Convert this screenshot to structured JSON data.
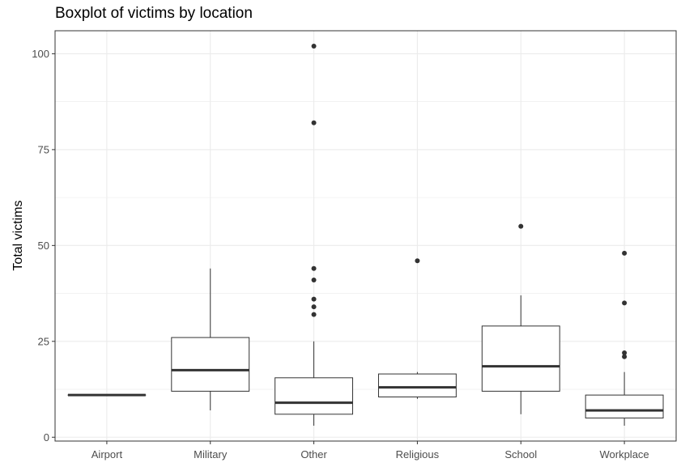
{
  "chart_data": {
    "type": "boxplot",
    "title": "Boxplot of victims by location",
    "xlabel": "",
    "ylabel": "Total victims",
    "ylim": [
      -1,
      106
    ],
    "yticks": [
      0,
      25,
      50,
      75,
      100
    ],
    "grid": true,
    "legend": "none",
    "colors": {
      "box_fill": "#ffffff",
      "box_stroke": "#333333",
      "grid": "#ebebeb",
      "panel_border": "#333333",
      "outlier": "#333333"
    },
    "categories": [
      "Airport",
      "Military",
      "Other",
      "Religious",
      "School",
      "Workplace"
    ],
    "boxes": [
      {
        "category": "Airport",
        "whisker_low": 11,
        "q1": 11,
        "median": 11,
        "q3": 11,
        "whisker_high": 11,
        "outliers": []
      },
      {
        "category": "Military",
        "whisker_low": 7,
        "q1": 12,
        "median": 17.5,
        "q3": 26,
        "whisker_high": 44,
        "outliers": []
      },
      {
        "category": "Other",
        "whisker_low": 3,
        "q1": 6,
        "median": 9,
        "q3": 15.5,
        "whisker_high": 25,
        "outliers": [
          32,
          34,
          36,
          41,
          44,
          82,
          102
        ]
      },
      {
        "category": "Religious",
        "whisker_low": 10,
        "q1": 10.5,
        "median": 13,
        "q3": 16.5,
        "whisker_high": 17,
        "outliers": [
          46
        ]
      },
      {
        "category": "School",
        "whisker_low": 6,
        "q1": 12,
        "median": 18.5,
        "q3": 29,
        "whisker_high": 37,
        "outliers": [
          55
        ]
      },
      {
        "category": "Workplace",
        "whisker_low": 3,
        "q1": 5,
        "median": 7,
        "q3": 11,
        "whisker_high": 17,
        "outliers": [
          21,
          22,
          35,
          48
        ]
      }
    ]
  }
}
